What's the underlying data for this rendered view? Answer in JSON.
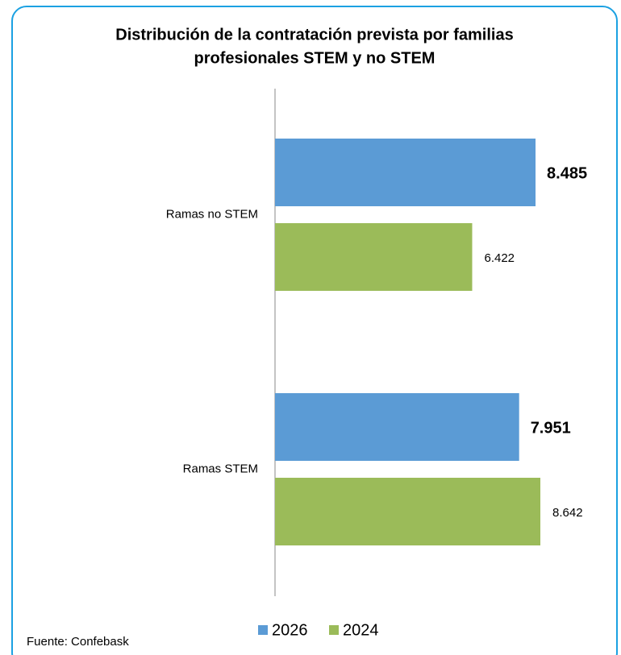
{
  "chart_data": {
    "type": "bar",
    "orientation": "horizontal",
    "title": [
      "Distribución de la contratación prevista por familias",
      "profesionales STEM y no STEM"
    ],
    "categories": [
      "Ramas no STEM",
      "Ramas STEM"
    ],
    "series": [
      {
        "name": "2026",
        "color": "#5b9bd5",
        "values": [
          8485,
          7951
        ],
        "value_labels": [
          "8.485",
          "7.951"
        ]
      },
      {
        "name": "2024",
        "color": "#9bbb59",
        "values": [
          6422,
          8642
        ],
        "value_labels": [
          "6.422",
          "8.642"
        ]
      }
    ],
    "xlim": [
      0,
      10000
    ],
    "legend": "bottom",
    "source": "Fuente: Confebask"
  }
}
